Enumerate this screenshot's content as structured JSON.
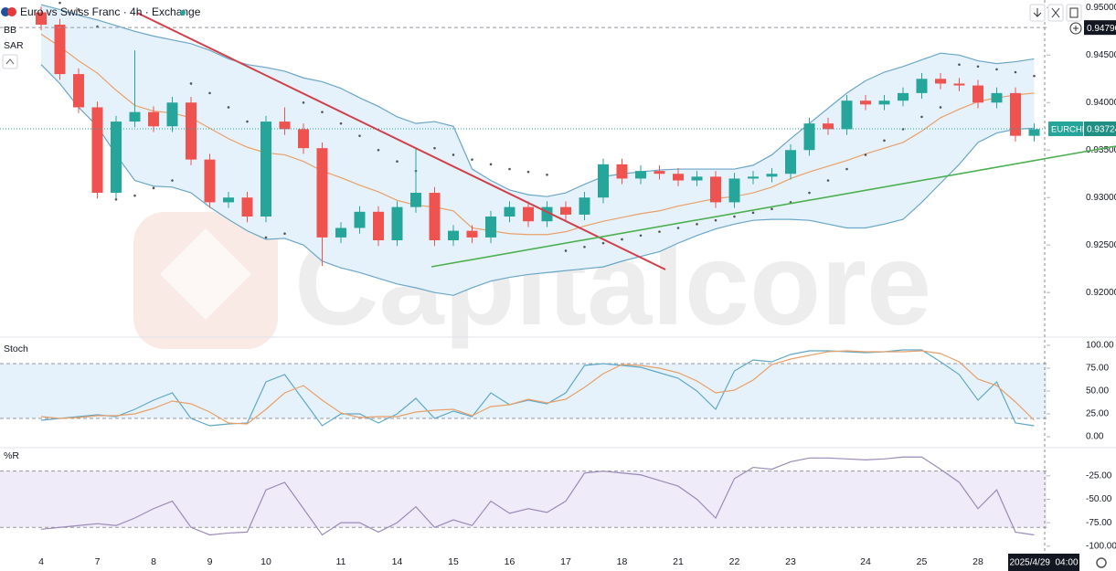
{
  "header": {
    "title": "Euro vs Swiss Franc · 4h · Exchange"
  },
  "watermark": "Capitalcore",
  "date_label": "2025/4/29  04:00",
  "chart_data": [
    {
      "type": "candlestick",
      "categories": [
        "4",
        null,
        null,
        "7",
        null,
        null,
        "8",
        null,
        null,
        "9",
        null,
        null,
        "10",
        null,
        null,
        null,
        "11",
        null,
        null,
        "14",
        null,
        null,
        "15",
        null,
        null,
        "16",
        null,
        null,
        "17",
        null,
        null,
        "18",
        null,
        null,
        "21",
        null,
        null,
        "22",
        null,
        null,
        "23",
        null,
        null,
        null,
        "24",
        null,
        null,
        "25",
        null,
        null,
        "28",
        null,
        null,
        null
      ],
      "open": [
        0.9495,
        0.9482,
        0.943,
        0.9395,
        0.9305,
        0.938,
        0.939,
        0.9375,
        0.94,
        0.934,
        0.9295,
        0.93,
        0.928,
        0.938,
        0.9372,
        0.9352,
        0.9258,
        0.9268,
        0.9285,
        0.9255,
        0.929,
        0.9305,
        0.9255,
        0.9265,
        0.9258,
        0.928,
        0.929,
        0.9275,
        0.929,
        0.9282,
        0.93,
        0.9335,
        0.932,
        0.9328,
        0.9325,
        0.9318,
        0.9322,
        0.9295,
        0.932,
        0.9322,
        0.9325,
        0.935,
        0.9378,
        0.9372,
        0.9402,
        0.9398,
        0.9402,
        0.941,
        0.9425,
        0.942,
        0.9418,
        0.94,
        0.941,
        0.9365
      ],
      "high": [
        0.9501,
        0.9488,
        0.9436,
        0.9401,
        0.9386,
        0.9455,
        0.9396,
        0.9406,
        0.9406,
        0.9346,
        0.9306,
        0.9306,
        0.9386,
        0.9395,
        0.9378,
        0.9358,
        0.9274,
        0.9291,
        0.9291,
        0.9296,
        0.9352,
        0.9311,
        0.9271,
        0.9271,
        0.9286,
        0.9296,
        0.9296,
        0.9296,
        0.9296,
        0.9306,
        0.9341,
        0.9341,
        0.9334,
        0.9334,
        0.9331,
        0.9328,
        0.9328,
        0.9326,
        0.9328,
        0.9331,
        0.9356,
        0.9384,
        0.9384,
        0.9408,
        0.9408,
        0.9408,
        0.9416,
        0.9431,
        0.9431,
        0.9426,
        0.9424,
        0.9416,
        0.9416,
        0.9378
      ],
      "low": [
        0.9476,
        0.9424,
        0.9389,
        0.9299,
        0.9299,
        0.9374,
        0.9369,
        0.9369,
        0.9334,
        0.9289,
        0.9289,
        0.9274,
        0.9274,
        0.9366,
        0.9346,
        0.9228,
        0.9252,
        0.9262,
        0.9249,
        0.9249,
        0.9284,
        0.9249,
        0.9249,
        0.9252,
        0.9252,
        0.9274,
        0.9269,
        0.9269,
        0.9276,
        0.9276,
        0.9294,
        0.9314,
        0.9314,
        0.9319,
        0.9312,
        0.9312,
        0.9289,
        0.9289,
        0.9314,
        0.9316,
        0.9319,
        0.9344,
        0.9366,
        0.9366,
        0.9392,
        0.9392,
        0.9396,
        0.9404,
        0.9414,
        0.9412,
        0.9394,
        0.9394,
        0.9359,
        0.9359
      ],
      "close": [
        0.9482,
        0.943,
        0.9395,
        0.9305,
        0.938,
        0.939,
        0.9375,
        0.94,
        0.934,
        0.9295,
        0.93,
        0.928,
        0.938,
        0.9372,
        0.9352,
        0.9258,
        0.9268,
        0.9285,
        0.9255,
        0.929,
        0.9305,
        0.9255,
        0.9265,
        0.9258,
        0.928,
        0.929,
        0.9275,
        0.929,
        0.9282,
        0.93,
        0.9335,
        0.932,
        0.9328,
        0.9325,
        0.9318,
        0.9322,
        0.9295,
        0.932,
        0.9322,
        0.9325,
        0.935,
        0.9378,
        0.9372,
        0.9402,
        0.9398,
        0.9402,
        0.941,
        0.9425,
        0.942,
        0.9418,
        0.94,
        0.941,
        0.9365,
        0.9372
      ],
      "up_color": "#26a69a",
      "down_color": "#ef5350",
      "indicators": [
        {
          "name": "BB",
          "color": "#6aa6c8",
          "basis_color": "#e8a06a",
          "fill": "#e6f2fb",
          "upper": [
            0.9503,
            0.9498,
            0.9492,
            0.9487,
            0.9481,
            0.9475,
            0.947,
            0.9466,
            0.9462,
            0.9455,
            0.9446,
            0.944,
            0.9437,
            0.9433,
            0.9426,
            0.9422,
            0.9415,
            0.9405,
            0.9396,
            0.9385,
            0.9378,
            0.938,
            0.9375,
            0.933,
            0.9318,
            0.9308,
            0.9303,
            0.9301,
            0.9305,
            0.9314,
            0.9322,
            0.9325,
            0.9327,
            0.9329,
            0.933,
            0.933,
            0.933,
            0.933,
            0.9334,
            0.9345,
            0.9362,
            0.9378,
            0.9394,
            0.941,
            0.9423,
            0.9432,
            0.9438,
            0.9445,
            0.9452,
            0.945,
            0.9444,
            0.9441,
            0.9443,
            0.9446
          ],
          "basis": [
            0.9472,
            0.9459,
            0.9444,
            0.9431,
            0.9413,
            0.9397,
            0.9391,
            0.9389,
            0.9384,
            0.9373,
            0.9362,
            0.9353,
            0.9347,
            0.9345,
            0.9338,
            0.9328,
            0.9321,
            0.9313,
            0.9306,
            0.9297,
            0.9292,
            0.929,
            0.9286,
            0.9268,
            0.9265,
            0.9262,
            0.9261,
            0.9261,
            0.9264,
            0.927,
            0.9275,
            0.9279,
            0.9283,
            0.9286,
            0.9291,
            0.9295,
            0.9299,
            0.9301,
            0.9305,
            0.9311,
            0.932,
            0.9327,
            0.9333,
            0.9339,
            0.9346,
            0.9352,
            0.9358,
            0.937,
            0.9384,
            0.9393,
            0.9401,
            0.9405,
            0.9408,
            0.941
          ],
          "lower": [
            0.944,
            0.942,
            0.9395,
            0.9375,
            0.9345,
            0.9318,
            0.9312,
            0.9311,
            0.9305,
            0.929,
            0.9277,
            0.9265,
            0.9256,
            0.9257,
            0.925,
            0.9233,
            0.9226,
            0.9221,
            0.9215,
            0.9209,
            0.9205,
            0.92,
            0.9197,
            0.9205,
            0.9212,
            0.9216,
            0.9219,
            0.9221,
            0.9223,
            0.9225,
            0.9227,
            0.9233,
            0.9238,
            0.9243,
            0.9252,
            0.926,
            0.9267,
            0.9272,
            0.9276,
            0.9277,
            0.9277,
            0.9276,
            0.9272,
            0.9268,
            0.9268,
            0.9272,
            0.9277,
            0.9295,
            0.9315,
            0.9335,
            0.9358,
            0.9368,
            0.9372,
            0.9373
          ]
        },
        {
          "name": "SAR",
          "color": "#555555",
          "values": [
            0.951,
            0.9505,
            0.9498,
            0.948,
            0.9298,
            0.9302,
            0.931,
            0.9318,
            0.942,
            0.941,
            0.9395,
            0.938,
            0.9258,
            0.9262,
            0.94,
            0.939,
            0.9378,
            0.9365,
            0.935,
            0.9338,
            0.9328,
            0.9352,
            0.9345,
            0.934,
            0.9335,
            0.933,
            0.9327,
            0.9324,
            0.9244,
            0.9248,
            0.9252,
            0.9256,
            0.926,
            0.9264,
            0.9268,
            0.9272,
            0.9276,
            0.928,
            0.9284,
            0.9288,
            0.9295,
            0.9305,
            0.9318,
            0.933,
            0.9345,
            0.936,
            0.9372,
            0.9385,
            0.9395,
            0.944,
            0.9438,
            0.9435,
            0.9432,
            0.9428
          ]
        }
      ],
      "ylim": [
        0.9154,
        0.9508
      ],
      "yticks": [
        {
          "value": 0.95,
          "label": "0.95000"
        },
        {
          "value": 0.945,
          "label": "0.94500"
        },
        {
          "value": 0.94,
          "label": "0.94000"
        },
        {
          "value": 0.935,
          "label": "0.93500"
        },
        {
          "value": 0.93,
          "label": "0.93000"
        },
        {
          "value": 0.925,
          "label": "0.92500"
        },
        {
          "value": 0.92,
          "label": "0.92000"
        }
      ],
      "last_price": {
        "symbol": "EURCHF",
        "value": 0.93724,
        "label": "0.93724",
        "color": "#26a69a"
      },
      "high_line": {
        "value": 0.9479,
        "label": "0.94790"
      }
    },
    {
      "type": "line",
      "title": "Stoch",
      "ylim": [
        -12,
        108
      ],
      "band": [
        20,
        80
      ],
      "band_fill": "#e6f2fb",
      "yticks": [
        {
          "value": 100,
          "label": "100.00"
        },
        {
          "value": 75,
          "label": "75.00"
        },
        {
          "value": 50,
          "label": "50.00"
        },
        {
          "value": 25,
          "label": "25.00"
        },
        {
          "value": 0,
          "label": "0.00"
        }
      ],
      "series": [
        {
          "color": "#5fa8c8",
          "values": [
            18,
            20,
            22,
            24,
            22,
            30,
            40,
            48,
            20,
            12,
            14,
            15,
            60,
            68,
            40,
            12,
            25,
            25,
            15,
            25,
            42,
            20,
            28,
            22,
            48,
            35,
            40,
            36,
            48,
            78,
            80,
            78,
            76,
            70,
            64,
            50,
            30,
            72,
            84,
            82,
            90,
            94,
            94,
            93,
            92,
            93,
            95,
            95,
            82,
            68,
            40,
            60,
            15,
            12
          ]
        },
        {
          "color": "#e8a06a",
          "values": [
            22,
            20,
            21,
            23,
            23,
            25,
            31,
            39,
            36,
            27,
            15,
            14,
            30,
            48,
            56,
            40,
            26,
            21,
            22,
            22,
            27,
            29,
            30,
            23,
            33,
            35,
            41,
            37,
            41,
            54,
            69,
            79,
            78,
            75,
            70,
            61,
            48,
            51,
            62,
            79,
            85,
            89,
            93,
            94,
            93,
            93,
            93,
            94,
            91,
            82,
            63,
            56,
            38,
            18
          ]
        }
      ]
    },
    {
      "type": "line",
      "title": "%R",
      "ylim": [
        -107,
        5
      ],
      "band": [
        -80,
        -20
      ],
      "band_fill": "#f0ebf8",
      "yticks": [
        {
          "value": -25,
          "label": "-25.00"
        },
        {
          "value": -50,
          "label": "-50.00"
        },
        {
          "value": -75,
          "label": "-75.00"
        },
        {
          "value": -100,
          "label": "-100.00"
        }
      ],
      "series": [
        {
          "color": "#9b8bb8",
          "values": [
            -82,
            -80,
            -78,
            -76,
            -78,
            -70,
            -60,
            -52,
            -80,
            -88,
            -86,
            -85,
            -40,
            -32,
            -60,
            -88,
            -75,
            -75,
            -85,
            -75,
            -58,
            -80,
            -72,
            -78,
            -52,
            -65,
            -60,
            -64,
            -52,
            -22,
            -20,
            -22,
            -24,
            -30,
            -36,
            -50,
            -70,
            -28,
            -16,
            -18,
            -10,
            -6,
            -6,
            -7,
            -8,
            -7,
            -5,
            -5,
            -18,
            -32,
            -60,
            -40,
            -85,
            -88
          ]
        }
      ]
    }
  ]
}
